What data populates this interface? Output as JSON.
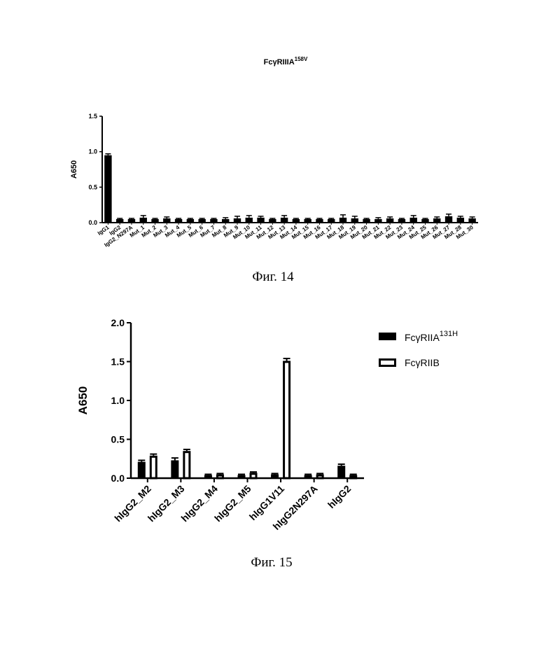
{
  "captions": {
    "fig14": "Фиг. 14",
    "fig15": "Фиг. 15"
  },
  "colors": {
    "ink": "#000000",
    "paper": "#ffffff"
  },
  "chart_data": [
    {
      "type": "bar",
      "title": "FcγRIIIA",
      "title_superscript": "158V",
      "xlabel": "",
      "ylabel": "A650",
      "ylim": [
        0,
        1.5
      ],
      "yticks": [
        "0.0",
        "0.5",
        "1.0",
        "1.5"
      ],
      "error_bars": true,
      "categories": [
        "IgG1",
        "IgG2",
        "IgG2_N297A",
        "Mut_1",
        "Mut_2",
        "Mut_3",
        "Mut_4",
        "Mut_5",
        "Mut_6",
        "Mut_7",
        "Mut_8",
        "Mut_9",
        "Mut_10",
        "Mut_11",
        "Mut_12",
        "Mut_13",
        "Mut_14",
        "Mut_15",
        "Mut_16",
        "Mut_17",
        "Mut_18",
        "Mut_19",
        "Mut_20",
        "Mut_21",
        "Mut_22",
        "Mut_23",
        "Mut_24",
        "Mut_25",
        "Mut_26",
        "Mut_27",
        "Mut_28",
        "Mut_30"
      ],
      "values": [
        0.95,
        0.05,
        0.05,
        0.07,
        0.05,
        0.06,
        0.05,
        0.05,
        0.05,
        0.05,
        0.05,
        0.06,
        0.07,
        0.07,
        0.05,
        0.07,
        0.05,
        0.05,
        0.05,
        0.05,
        0.07,
        0.06,
        0.05,
        0.05,
        0.06,
        0.05,
        0.07,
        0.05,
        0.06,
        0.09,
        0.07,
        0.06
      ],
      "errors": [
        0.02,
        0.01,
        0.01,
        0.03,
        0.01,
        0.02,
        0.01,
        0.01,
        0.01,
        0.01,
        0.02,
        0.03,
        0.03,
        0.02,
        0.01,
        0.03,
        0.01,
        0.01,
        0.01,
        0.01,
        0.04,
        0.03,
        0.01,
        0.02,
        0.02,
        0.01,
        0.03,
        0.01,
        0.02,
        0.03,
        0.02,
        0.02
      ]
    },
    {
      "type": "bar",
      "xlabel": "",
      "ylabel": "A650",
      "ylim": [
        0,
        2.0
      ],
      "yticks": [
        "0.0",
        "0.5",
        "1.0",
        "1.5",
        "2.0"
      ],
      "error_bars": true,
      "legend_position": "top-right",
      "categories": [
        "hIgG2_M2",
        "hIgG2_M3",
        "hIgG2_M4",
        "hIgG2_M5",
        "hIgG1V11",
        "hIgG2N297A",
        "hIgG2"
      ],
      "series": [
        {
          "name": "FcγRIIA",
          "name_superscript": "131H",
          "style": "filled",
          "values": [
            0.21,
            0.23,
            0.04,
            0.04,
            0.05,
            0.04,
            0.16
          ],
          "errors": [
            0.02,
            0.03,
            0.01,
            0.01,
            0.01,
            0.01,
            0.02
          ]
        },
        {
          "name": "FcγRIIB",
          "style": "hollow",
          "values": [
            0.29,
            0.35,
            0.05,
            0.07,
            1.51,
            0.05,
            0.04
          ],
          "errors": [
            0.02,
            0.02,
            0.01,
            0.01,
            0.03,
            0.01,
            0.01
          ]
        }
      ]
    }
  ]
}
